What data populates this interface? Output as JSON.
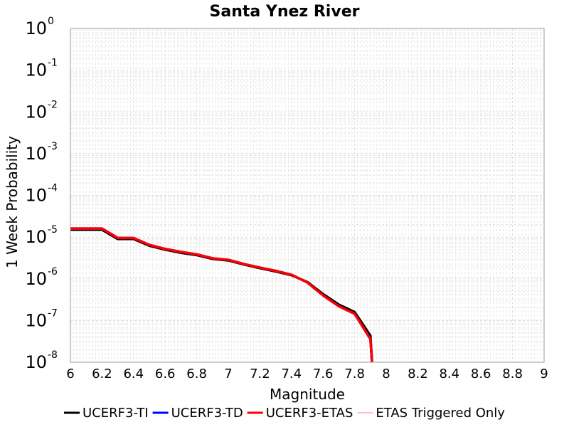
{
  "chart_data": {
    "type": "line",
    "title": "Santa Ynez River",
    "xlabel": "Magnitude",
    "ylabel": "1 Week Probability",
    "xlim": [
      6,
      9
    ],
    "ylim": [
      1e-08,
      1
    ],
    "yscale": "log",
    "grid": true,
    "legend_position": "bottom",
    "x_ticks": [
      "6",
      "6.2",
      "6.4",
      "6.6",
      "6.8",
      "7",
      "7.2",
      "7.4",
      "7.6",
      "7.8",
      "8",
      "8.2",
      "8.4",
      "8.6",
      "8.8",
      "9"
    ],
    "y_ticks": [
      {
        "value": 1.0,
        "base": "10",
        "exp": "0"
      },
      {
        "value": 0.1,
        "base": "10",
        "exp": "-1"
      },
      {
        "value": 0.01,
        "base": "10",
        "exp": "-2"
      },
      {
        "value": 0.001,
        "base": "10",
        "exp": "-3"
      },
      {
        "value": 0.0001,
        "base": "10",
        "exp": "-4"
      },
      {
        "value": 1e-05,
        "base": "10",
        "exp": "-5"
      },
      {
        "value": 1e-06,
        "base": "10",
        "exp": "-6"
      },
      {
        "value": 1e-07,
        "base": "10",
        "exp": "-7"
      },
      {
        "value": 1e-08,
        "base": "10",
        "exp": "-8"
      }
    ],
    "series": [
      {
        "name": "UCERF3-TI",
        "color": "#000000",
        "x": [
          6.0,
          6.2,
          6.3,
          6.4,
          6.5,
          6.6,
          6.7,
          6.8,
          6.9,
          7.0,
          7.1,
          7.2,
          7.3,
          7.4,
          7.5,
          7.6,
          7.7,
          7.8,
          7.9,
          7.91
        ],
        "y": [
          1.5e-05,
          1.5e-05,
          9e-06,
          9e-06,
          6.2e-06,
          5e-06,
          4.2e-06,
          3.7e-06,
          3e-06,
          2.75e-06,
          2.2e-06,
          1.8e-06,
          1.5e-06,
          1.22e-06,
          8.4e-07,
          4.3e-07,
          2.4e-07,
          1.6e-07,
          4.3e-08,
          1e-08
        ]
      },
      {
        "name": "UCERF3-TD",
        "color": "#0000ff",
        "x": [
          6.0,
          6.2,
          6.3,
          6.4,
          6.5,
          6.6,
          6.7,
          6.8,
          6.9,
          7.0,
          7.1,
          7.2,
          7.3,
          7.4,
          7.5,
          7.6,
          7.7,
          7.8,
          7.9,
          7.91
        ],
        "y": [
          1.6e-05,
          1.6e-05,
          9.5e-06,
          9.5e-06,
          6.5e-06,
          5.2e-06,
          4.4e-06,
          3.85e-06,
          3.1e-06,
          2.85e-06,
          2.25e-06,
          1.85e-06,
          1.55e-06,
          1.25e-06,
          8.2e-07,
          4e-07,
          2.2e-07,
          1.45e-07,
          3.6e-08,
          1e-08
        ]
      },
      {
        "name": "UCERF3-ETAS",
        "color": "#ff0000",
        "x": [
          6.0,
          6.2,
          6.3,
          6.4,
          6.5,
          6.6,
          6.7,
          6.8,
          6.9,
          7.0,
          7.1,
          7.2,
          7.3,
          7.4,
          7.5,
          7.6,
          7.7,
          7.8,
          7.9,
          7.91
        ],
        "y": [
          1.6e-05,
          1.6e-05,
          9.5e-06,
          9.5e-06,
          6.5e-06,
          5.2e-06,
          4.4e-06,
          3.85e-06,
          3.1e-06,
          2.85e-06,
          2.25e-06,
          1.85e-06,
          1.55e-06,
          1.25e-06,
          8.2e-07,
          4e-07,
          2.2e-07,
          1.45e-07,
          3.6e-08,
          1e-08
        ]
      },
      {
        "name": "ETAS Triggered Only",
        "color": "#ff8080",
        "x": [],
        "y": []
      }
    ]
  }
}
